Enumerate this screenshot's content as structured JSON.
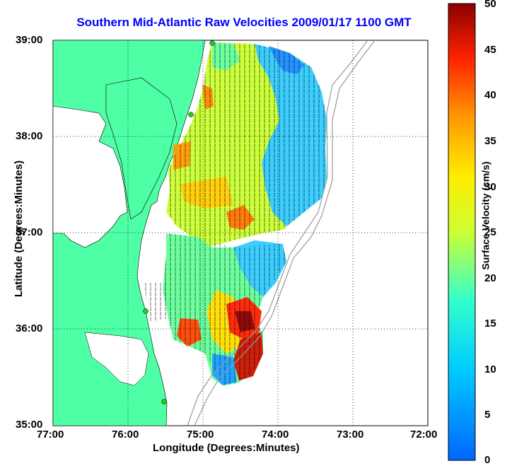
{
  "title": "Southern Mid-Atlantic Raw Velocities 2009/01/17 1100 GMT",
  "xlabel": "Longitude (Degrees:Minutes)",
  "ylabel": "Latitude (Degrees:Minutes)",
  "colorbar_label": "Surface Velocity (cm/s)",
  "x_ticks": [
    "77:00",
    "76:00",
    "75:00",
    "74:00",
    "73:00",
    "72:00"
  ],
  "y_ticks": [
    "39:00",
    "38:00",
    "37:00",
    "36:00",
    "35:00"
  ],
  "colorbar_ticks": [
    "50",
    "45",
    "40",
    "35",
    "30",
    "25",
    "20",
    "15",
    "10",
    "5",
    "0"
  ],
  "colors": {
    "land": "#4fffa6",
    "title": "#0000ff",
    "high": "#8b0000",
    "low": "#0a6cff"
  }
}
